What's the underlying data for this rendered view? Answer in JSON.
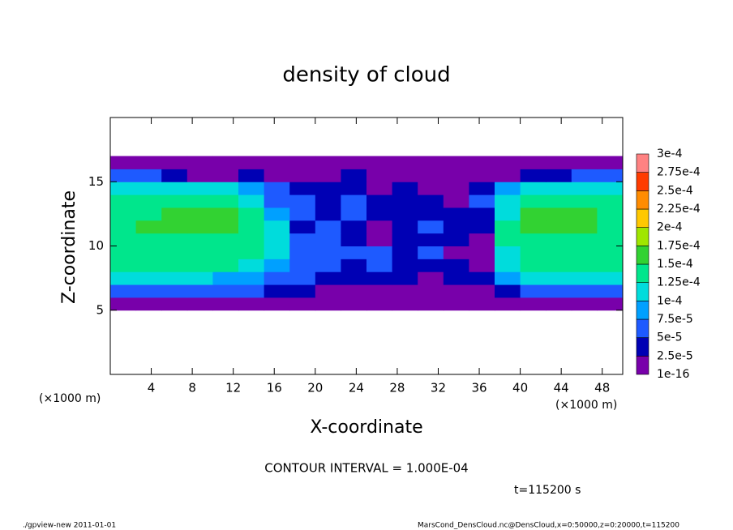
{
  "chart_data": {
    "type": "heatmap",
    "title": "density of cloud",
    "xlabel": "X-coordinate",
    "ylabel": "Z-coordinate",
    "xunit": "(×1000 m)",
    "yunit": "(×1000 m)",
    "note": "CONTOUR INTERVAL = 1.000E-04",
    "time": "t=115200 s",
    "footer_left": "./gpview-new   2011-01-01",
    "footer_right": "MarsCond_DensCloud.nc@DensCloud,x=0:50000,z=0:20000,t=115200",
    "xlim": [
      0,
      50
    ],
    "ylim": [
      0,
      20
    ],
    "xticks": [
      4,
      8,
      12,
      16,
      20,
      24,
      28,
      32,
      36,
      40,
      44,
      48
    ],
    "yticks": [
      5,
      10,
      15
    ],
    "x": [
      0,
      2.5,
      5,
      7.5,
      10,
      12.5,
      15,
      17.5,
      20,
      22.5,
      25,
      27.5,
      30,
      32.5,
      35,
      37.5,
      40,
      42.5,
      45,
      47.5,
      50
    ],
    "z": [
      5,
      6,
      7,
      8,
      9,
      10,
      11,
      12,
      13,
      14,
      15,
      16,
      17
    ],
    "values": [
      [
        1e-16,
        1e-16,
        1e-16,
        1e-16,
        1e-16,
        1e-16,
        1e-16,
        1e-16,
        1e-16,
        1e-16,
        1e-16,
        1e-16,
        1e-16,
        1e-16,
        1e-16,
        1e-16,
        1e-16,
        1e-16,
        1e-16,
        1e-16
      ],
      [
        5e-05,
        5e-05,
        5e-05,
        5e-05,
        5e-05,
        5e-05,
        4e-05,
        3e-05,
        2e-05,
        1e-16,
        2e-05,
        2e-05,
        1e-16,
        2e-05,
        2e-05,
        4e-05,
        5e-05,
        5e-05,
        5e-05,
        5e-05
      ],
      [
        0.0001,
        0.0001,
        0.0001,
        0.0001,
        9e-05,
        8e-05,
        6e-05,
        5e-05,
        4e-05,
        3e-05,
        4e-05,
        3e-05,
        2e-05,
        3e-05,
        4e-05,
        8e-05,
        0.0001,
        0.0001,
        0.0001,
        0.0001
      ],
      [
        0.00013,
        0.00013,
        0.00013,
        0.00013,
        0.00013,
        0.00012,
        9e-05,
        5e-05,
        5e-05,
        4e-05,
        6e-05,
        4e-05,
        4e-05,
        3e-05,
        1e-16,
        0.0001,
        0.00013,
        0.00013,
        0.00013,
        0.00013
      ],
      [
        0.00014,
        0.00014,
        0.00014,
        0.00014,
        0.00014,
        0.00014,
        0.00012,
        6e-05,
        5e-05,
        6e-05,
        5e-05,
        4e-05,
        5e-05,
        2e-05,
        1e-16,
        0.00012,
        0.00014,
        0.00014,
        0.00014,
        0.00014
      ],
      [
        0.000145,
        0.000145,
        0.000145,
        0.000145,
        0.000145,
        0.00014,
        0.00012,
        5e-05,
        6e-05,
        4e-05,
        2e-05,
        3e-05,
        4e-05,
        3e-05,
        2e-05,
        0.00013,
        0.000145,
        0.000145,
        0.000145,
        0.000145
      ],
      [
        0.000145,
        0.00015,
        0.00015,
        0.00015,
        0.00015,
        0.00014,
        0.0001,
        4e-05,
        5e-05,
        3e-05,
        1e-16,
        3e-05,
        5e-05,
        4e-05,
        3e-05,
        0.00013,
        0.00015,
        0.00015,
        0.00015,
        0.000145
      ],
      [
        0.00014,
        0.000145,
        0.00015,
        0.00015,
        0.00015,
        0.00014,
        9e-05,
        5e-05,
        4e-05,
        6e-05,
        4e-05,
        4e-05,
        3e-05,
        3e-05,
        4e-05,
        0.00012,
        0.00015,
        0.00015,
        0.00015,
        0.00014
      ],
      [
        0.00013,
        0.00014,
        0.00014,
        0.00014,
        0.00014,
        0.00012,
        7e-05,
        5e-05,
        4e-05,
        5e-05,
        4e-05,
        3e-05,
        3e-05,
        2e-05,
        5e-05,
        0.0001,
        0.00014,
        0.00014,
        0.00014,
        0.00013
      ],
      [
        0.00011,
        0.00011,
        0.00011,
        0.00011,
        0.0001,
        9e-05,
        7e-05,
        4e-05,
        3e-05,
        4e-05,
        2e-05,
        3e-05,
        1e-16,
        1e-16,
        3e-05,
        8e-05,
        0.00011,
        0.00011,
        0.00011,
        0.00011
      ],
      [
        6e-05,
        5e-05,
        3e-05,
        2e-05,
        2e-05,
        3e-05,
        2e-05,
        1e-16,
        2e-05,
        3e-05,
        2e-05,
        1e-16,
        1e-16,
        1e-16,
        1e-16,
        2e-05,
        3e-05,
        4e-05,
        5e-05,
        6e-05
      ],
      [
        1e-16,
        1e-16,
        1e-16,
        1e-16,
        1e-16,
        1e-16,
        1e-16,
        1e-16,
        1e-16,
        1e-16,
        1e-16,
        1e-16,
        1e-16,
        1e-16,
        1e-16,
        1e-16,
        1e-16,
        1e-16,
        1e-16,
        1e-16
      ]
    ],
    "colorbar": {
      "ticks": [
        1e-16,
        {
          "value": 2.5e-05,
          "label": "2.5e-5"
        },
        {
          "value": 5e-05,
          "label": "5e-5"
        },
        {
          "value": 7.5e-05,
          "label": "7.5e-5"
        },
        {
          "value": 0.0001,
          "label": "1e-4"
        },
        {
          "value": 0.000125,
          "label": "1.25e-4"
        },
        {
          "value": 0.00015,
          "label": "1.5e-4"
        },
        {
          "value": 0.000175,
          "label": "1.75e-4"
        },
        {
          "value": 0.0002,
          "label": "2e-4"
        },
        {
          "value": 0.000225,
          "label": "2.25e-4"
        },
        {
          "value": 0.00025,
          "label": "2.5e-4"
        },
        {
          "value": 0.000275,
          "label": "2.75e-4"
        },
        {
          "value": 0.0003,
          "label": "3e-4"
        }
      ],
      "colors": [
        "#7800aa",
        "#0000b4",
        "#1e5aff",
        "#00a0ff",
        "#00dcdc",
        "#00e68c",
        "#32d232",
        "#a0e600",
        "#ffc800",
        "#ff8c00",
        "#ff3c00",
        "#ff8282"
      ]
    }
  }
}
